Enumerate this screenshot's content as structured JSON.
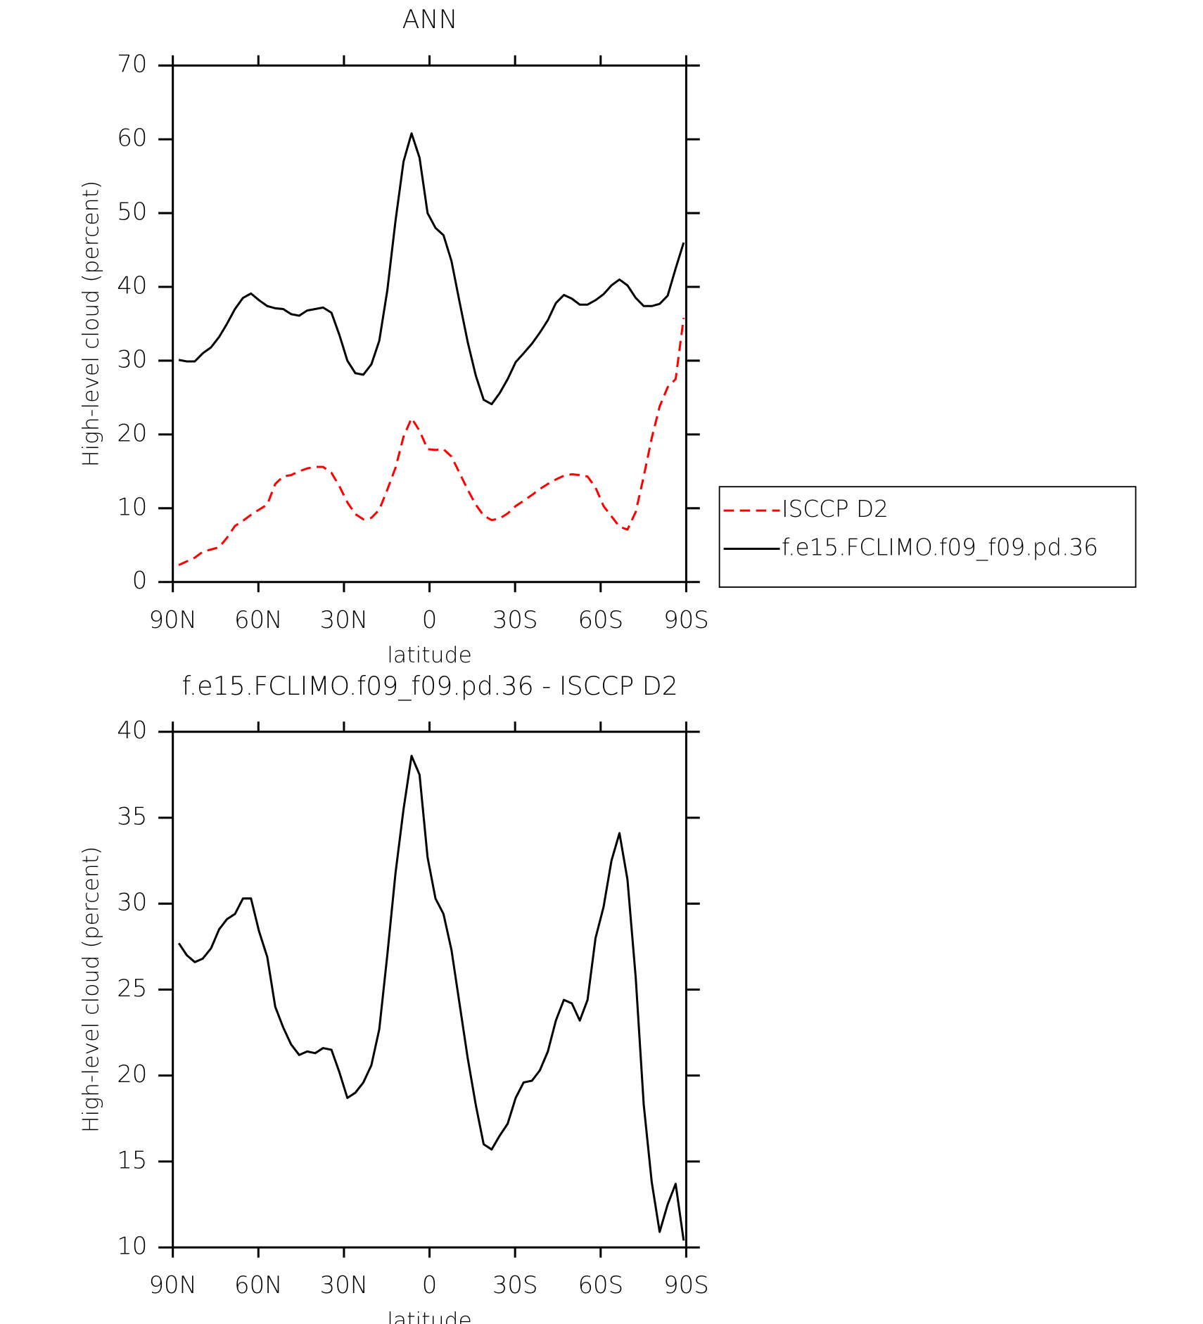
{
  "chart_data": [
    {
      "type": "line",
      "title": "ANN",
      "xlabel": "latitude",
      "ylabel": "High-level cloud (percent)",
      "x": [
        87.9,
        85.1,
        82.3,
        79.5,
        76.6,
        73.8,
        71.0,
        68.2,
        65.4,
        62.6,
        59.8,
        56.9,
        54.1,
        51.3,
        48.5,
        45.7,
        42.9,
        40.1,
        37.3,
        34.4,
        31.6,
        28.8,
        26.0,
        23.2,
        20.4,
        17.6,
        14.8,
        11.9,
        9.1,
        6.3,
        3.5,
        0.7,
        -2.1,
        -4.9,
        -7.7,
        -10.5,
        -13.4,
        -16.2,
        -19.0,
        -21.8,
        -24.6,
        -27.4,
        -30.2,
        -33.0,
        -35.9,
        -38.7,
        -41.5,
        -44.3,
        -47.1,
        -49.9,
        -52.7,
        -55.4,
        -58.2,
        -61.0,
        -63.8,
        -66.6,
        -69.4,
        -72.3,
        -75.1,
        -77.9,
        -80.7,
        -83.5,
        -86.3,
        -89.1
      ],
      "series": [
        {
          "name": "ISCCP D2",
          "color": "#ff0000",
          "dashed": true,
          "values": [
            2.3,
            2.8,
            3.3,
            4.1,
            4.4,
            4.7,
            6.0,
            7.6,
            8.3,
            9.1,
            9.8,
            10.5,
            13.3,
            14.3,
            14.5,
            15.0,
            15.4,
            15.6,
            15.6,
            14.8,
            13.0,
            10.8,
            9.2,
            8.5,
            8.7,
            9.8,
            12.5,
            15.5,
            19.7,
            22.2,
            20.5,
            18.0,
            17.9,
            18.0,
            17.0,
            14.8,
            12.5,
            10.5,
            9.0,
            8.4,
            8.6,
            9.3,
            10.3,
            11.0,
            11.8,
            12.6,
            13.3,
            13.9,
            14.4,
            14.6,
            14.5,
            14.3,
            12.8,
            10.3,
            8.9,
            7.5,
            7.1,
            9.5,
            14.3,
            19.5,
            23.8,
            26.4,
            27.5,
            35.8
          ]
        },
        {
          "name": "f.e15.FCLIMO.f09_f09.pd.36",
          "color": "#000000",
          "dashed": false,
          "values": [
            30.1,
            29.9,
            29.9,
            31.0,
            31.8,
            33.2,
            35.0,
            37.0,
            38.5,
            39.1,
            38.2,
            37.4,
            37.1,
            37.0,
            36.3,
            36.1,
            36.8,
            37.0,
            37.2,
            36.5,
            33.5,
            30.0,
            28.3,
            28.1,
            29.5,
            32.7,
            39.5,
            49.0,
            57.0,
            60.8,
            57.5,
            50.0,
            48.0,
            47.0,
            43.5,
            38.0,
            32.5,
            28.0,
            24.7,
            24.1,
            25.6,
            27.5,
            29.8,
            31.0,
            32.3,
            33.8,
            35.5,
            37.8,
            38.9,
            38.4,
            37.6,
            37.6,
            38.2,
            39.0,
            40.2,
            41.0,
            40.2,
            38.5,
            37.4,
            37.4,
            37.7,
            38.8,
            42.5,
            46.0
          ]
        }
      ],
      "xlim": [
        90,
        -90
      ],
      "xticks": [
        {
          "value": 90,
          "label": "90N"
        },
        {
          "value": 60,
          "label": "60N"
        },
        {
          "value": 30,
          "label": "30N"
        },
        0,
        {
          "value": -30,
          "label": "30S"
        },
        {
          "value": -60,
          "label": "60S"
        },
        {
          "value": -90,
          "label": "90S"
        }
      ],
      "ylim": [
        0,
        70
      ],
      "yticks": [
        0,
        10,
        20,
        30,
        40,
        50,
        60,
        70
      ],
      "legend": "right"
    },
    {
      "type": "line",
      "title": "f.e15.FCLIMO.f09_f09.pd.36 - ISCCP D2",
      "xlabel": "latitude",
      "ylabel": "High-level cloud (percent)",
      "x": [
        87.9,
        85.1,
        82.3,
        79.5,
        76.6,
        73.8,
        71.0,
        68.2,
        65.4,
        62.6,
        59.8,
        56.9,
        54.1,
        51.3,
        48.5,
        45.7,
        42.9,
        40.1,
        37.3,
        34.4,
        31.6,
        28.8,
        26.0,
        23.2,
        20.4,
        17.6,
        14.8,
        11.9,
        9.1,
        6.3,
        3.5,
        0.7,
        -2.1,
        -4.9,
        -7.7,
        -10.5,
        -13.4,
        -16.2,
        -19.0,
        -21.8,
        -24.6,
        -27.4,
        -30.2,
        -33.0,
        -35.9,
        -38.7,
        -41.5,
        -44.3,
        -47.1,
        -49.9,
        -52.7,
        -55.4,
        -58.2,
        -61.0,
        -63.8,
        -66.6,
        -69.4,
        -72.3,
        -75.1,
        -77.9,
        -80.7,
        -83.5,
        -86.3,
        -89.1
      ],
      "color": "#000000",
      "values": [
        27.7,
        27.0,
        26.6,
        26.8,
        27.4,
        28.5,
        29.1,
        29.4,
        30.3,
        30.3,
        28.4,
        26.9,
        24.0,
        22.8,
        21.8,
        21.2,
        21.4,
        21.3,
        21.6,
        21.5,
        20.2,
        18.7,
        19.0,
        19.6,
        20.6,
        22.7,
        27.0,
        31.8,
        35.5,
        38.6,
        37.5,
        32.7,
        30.3,
        29.4,
        27.3,
        24.2,
        21.0,
        18.3,
        16.0,
        15.7,
        16.5,
        17.2,
        18.7,
        19.6,
        19.7,
        20.3,
        21.4,
        23.2,
        24.4,
        24.2,
        23.2,
        24.4,
        28.0,
        29.8,
        32.5,
        34.1,
        31.4,
        25.7,
        18.3,
        13.8,
        10.9,
        12.5,
        13.7,
        10.4
      ],
      "xlim": [
        90,
        -90
      ],
      "xticks": [
        {
          "value": 90,
          "label": "90N"
        },
        {
          "value": 60,
          "label": "60N"
        },
        {
          "value": 30,
          "label": "30N"
        },
        0,
        {
          "value": -30,
          "label": "30S"
        },
        {
          "value": -60,
          "label": "60S"
        },
        {
          "value": -90,
          "label": "90S"
        }
      ],
      "ylim": [
        10,
        40
      ],
      "yticks": [
        10,
        15,
        20,
        25,
        30,
        35,
        40
      ]
    }
  ]
}
